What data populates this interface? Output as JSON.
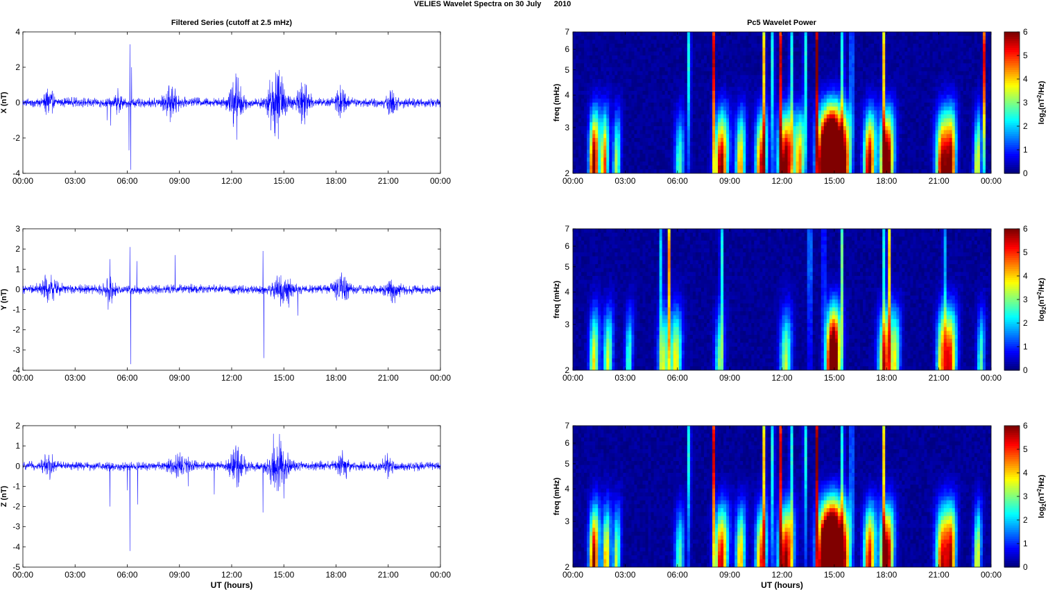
{
  "figure": {
    "suptitle": "VELIES Wavelet Spectra on 30 July      2010",
    "left_title": "Filtered Series (cutoff at 2.5 mHz)",
    "right_title": "Pc5 Wavelet Power",
    "xlabel": "UT (hours)",
    "xticks": [
      "00:00",
      "03:00",
      "06:00",
      "09:00",
      "12:00",
      "15:00",
      "18:00",
      "21:00",
      "00:00"
    ],
    "colorbar_label": "log2(nT2/Hz)",
    "colorbar_ticks": [
      "0",
      "1",
      "2",
      "3",
      "4",
      "5",
      "6"
    ],
    "line_color": "#0000ff"
  },
  "chart_data": [
    {
      "type": "line",
      "name": "X",
      "ylabel": "X (nT)",
      "ylim": [
        -4,
        4
      ],
      "yticks": [
        "-4",
        "-2",
        "0",
        "2",
        "4"
      ],
      "xlim_hours": [
        0,
        24
      ],
      "baseline_amplitude": 0.3,
      "bursts": [
        [
          1.5,
          0.25,
          0.8
        ],
        [
          5.5,
          0.2,
          0.6
        ],
        [
          8.5,
          0.4,
          0.9
        ],
        [
          12.2,
          0.4,
          1.6
        ],
        [
          14.6,
          0.5,
          2.0
        ],
        [
          16.1,
          0.35,
          1.2
        ],
        [
          18.3,
          0.25,
          1.0
        ],
        [
          21.2,
          0.3,
          0.7
        ]
      ],
      "spikes": [
        [
          6.15,
          3.3
        ],
        [
          6.2,
          -3.8
        ],
        [
          6.25,
          2.0
        ],
        [
          6.1,
          -2.7
        ],
        [
          12.3,
          -2.1
        ],
        [
          14.5,
          -1.9
        ],
        [
          14.7,
          1.5
        ],
        [
          5.05,
          -1.3
        ],
        [
          4.85,
          -1.0
        ],
        [
          8.6,
          0.9
        ]
      ]
    },
    {
      "type": "line",
      "name": "Y",
      "ylabel": "Y (nT)",
      "ylim": [
        -4,
        3
      ],
      "yticks": [
        "-4",
        "-3",
        "-2",
        "-1",
        "0",
        "1",
        "2",
        "3"
      ],
      "xlim_hours": [
        0,
        24
      ],
      "baseline_amplitude": 0.25,
      "bursts": [
        [
          1.5,
          0.5,
          0.6
        ],
        [
          5.0,
          0.3,
          0.5
        ],
        [
          14.9,
          0.5,
          0.8
        ],
        [
          18.3,
          0.4,
          0.8
        ],
        [
          21.3,
          0.4,
          0.5
        ]
      ],
      "spikes": [
        [
          6.15,
          2.1
        ],
        [
          6.2,
          -3.7
        ],
        [
          5.0,
          1.5
        ],
        [
          6.55,
          1.4
        ],
        [
          8.75,
          1.7
        ],
        [
          13.8,
          1.9
        ],
        [
          13.85,
          -3.4
        ],
        [
          15.8,
          -1.3
        ],
        [
          4.9,
          -1.0
        ],
        [
          15.3,
          -0.9
        ]
      ]
    },
    {
      "type": "line",
      "name": "Z",
      "ylabel": "Z (nT)",
      "ylim": [
        -5,
        2
      ],
      "yticks": [
        "-5",
        "-4",
        "-3",
        "-2",
        "-1",
        "0",
        "1",
        "2"
      ],
      "xlim_hours": [
        0,
        24
      ],
      "baseline_amplitude": 0.25,
      "bursts": [
        [
          1.5,
          0.3,
          0.6
        ],
        [
          9.0,
          0.5,
          0.6
        ],
        [
          12.3,
          0.4,
          1.0
        ],
        [
          14.7,
          0.5,
          1.5
        ],
        [
          18.4,
          0.3,
          0.7
        ],
        [
          21.0,
          0.3,
          0.5
        ]
      ],
      "spikes": [
        [
          6.15,
          -4.2
        ],
        [
          6.0,
          -1.2
        ],
        [
          6.6,
          -1.9
        ],
        [
          5.0,
          -2.0
        ],
        [
          13.8,
          -2.3
        ],
        [
          14.4,
          1.6
        ],
        [
          15.0,
          -1.6
        ],
        [
          11.0,
          -1.4
        ],
        [
          9.5,
          -1.0
        ]
      ]
    },
    {
      "type": "heatmap",
      "name": "X wavelet",
      "ylabel": "freq (mHz)",
      "yscale": "log",
      "ylim": [
        2,
        7
      ],
      "yticks": [
        "2",
        "3",
        "4",
        "5",
        "6",
        "7"
      ],
      "clim": [
        0,
        6
      ],
      "colormap": "jet",
      "blobs": [
        [
          1.2,
          6.0,
          0.25
        ],
        [
          1.8,
          4.5,
          0.2
        ],
        [
          8.5,
          5.5,
          0.35
        ],
        [
          9.6,
          4.0,
          0.25
        ],
        [
          10.8,
          5.0,
          0.3
        ],
        [
          12.2,
          6.0,
          0.4
        ],
        [
          14.5,
          9.0,
          0.45
        ],
        [
          15.0,
          8.0,
          0.35
        ],
        [
          15.6,
          5.0,
          0.3
        ],
        [
          17.0,
          5.5,
          0.3
        ],
        [
          18.0,
          6.5,
          0.35
        ],
        [
          21.2,
          5.5,
          0.35
        ],
        [
          21.7,
          4.8,
          0.25
        ],
        [
          23.2,
          3.5,
          0.2
        ],
        [
          2.5,
          3.0,
          0.2
        ],
        [
          6.1,
          2.5,
          0.25
        ],
        [
          13.0,
          4.0,
          0.25
        ]
      ],
      "streaks": [
        [
          6.7,
          7
        ],
        [
          8.1,
          7
        ],
        [
          11.0,
          7
        ],
        [
          11.5,
          7
        ],
        [
          11.9,
          7
        ],
        [
          12.5,
          7
        ],
        [
          13.3,
          7
        ],
        [
          14.0,
          7
        ],
        [
          15.5,
          7
        ],
        [
          16.0,
          7
        ],
        [
          17.8,
          7
        ],
        [
          23.6,
          6
        ]
      ]
    },
    {
      "type": "heatmap",
      "name": "Y wavelet",
      "ylabel": "freq (mHz)",
      "yscale": "log",
      "ylim": [
        2,
        7
      ],
      "yticks": [
        "2",
        "3",
        "4",
        "5",
        "6",
        "7"
      ],
      "clim": [
        0,
        6
      ],
      "colormap": "jet",
      "blobs": [
        [
          1.2,
          3.5,
          0.25
        ],
        [
          2.0,
          3.2,
          0.25
        ],
        [
          5.2,
          3.0,
          0.3
        ],
        [
          5.9,
          3.5,
          0.3
        ],
        [
          8.4,
          2.5,
          0.25
        ],
        [
          12.2,
          3.0,
          0.3
        ],
        [
          14.8,
          3.5,
          0.3
        ],
        [
          15.0,
          5.0,
          0.35
        ],
        [
          17.9,
          4.5,
          0.35
        ],
        [
          18.5,
          3.0,
          0.25
        ],
        [
          21.6,
          5.0,
          0.35
        ],
        [
          21.1,
          3.0,
          0.25
        ],
        [
          23.4,
          2.5,
          0.2
        ],
        [
          3.2,
          2.5,
          0.2
        ]
      ],
      "streaks": [
        [
          5.1,
          6
        ],
        [
          5.5,
          5.5
        ],
        [
          8.5,
          7
        ],
        [
          13.6,
          8
        ],
        [
          14.4,
          5
        ],
        [
          15.4,
          5
        ],
        [
          17.9,
          7
        ],
        [
          18.2,
          7
        ],
        [
          21.3,
          5
        ]
      ]
    },
    {
      "type": "heatmap",
      "name": "Z wavelet",
      "ylabel": "freq (mHz)",
      "yscale": "log",
      "ylim": [
        2,
        7
      ],
      "yticks": [
        "2",
        "3",
        "4",
        "5",
        "6",
        "7"
      ],
      "clim": [
        0,
        6
      ],
      "colormap": "jet",
      "blobs": [
        [
          1.2,
          5.5,
          0.25
        ],
        [
          1.9,
          4.0,
          0.2
        ],
        [
          8.5,
          5.0,
          0.35
        ],
        [
          9.6,
          3.8,
          0.25
        ],
        [
          10.8,
          4.5,
          0.3
        ],
        [
          12.2,
          5.5,
          0.4
        ],
        [
          14.5,
          8.5,
          0.45
        ],
        [
          15.0,
          7.5,
          0.35
        ],
        [
          15.6,
          4.5,
          0.3
        ],
        [
          17.0,
          5.0,
          0.3
        ],
        [
          18.0,
          6.0,
          0.35
        ],
        [
          21.2,
          5.0,
          0.35
        ],
        [
          21.7,
          4.5,
          0.25
        ],
        [
          23.2,
          3.5,
          0.2
        ],
        [
          2.5,
          3.0,
          0.2
        ],
        [
          6.1,
          2.5,
          0.25
        ]
      ],
      "streaks": [
        [
          6.7,
          7
        ],
        [
          8.1,
          7
        ],
        [
          11.0,
          7
        ],
        [
          11.5,
          7
        ],
        [
          11.9,
          7
        ],
        [
          12.5,
          7
        ],
        [
          13.3,
          7
        ],
        [
          14.0,
          7
        ],
        [
          15.5,
          7
        ],
        [
          16.0,
          7
        ],
        [
          17.8,
          7
        ]
      ]
    }
  ]
}
